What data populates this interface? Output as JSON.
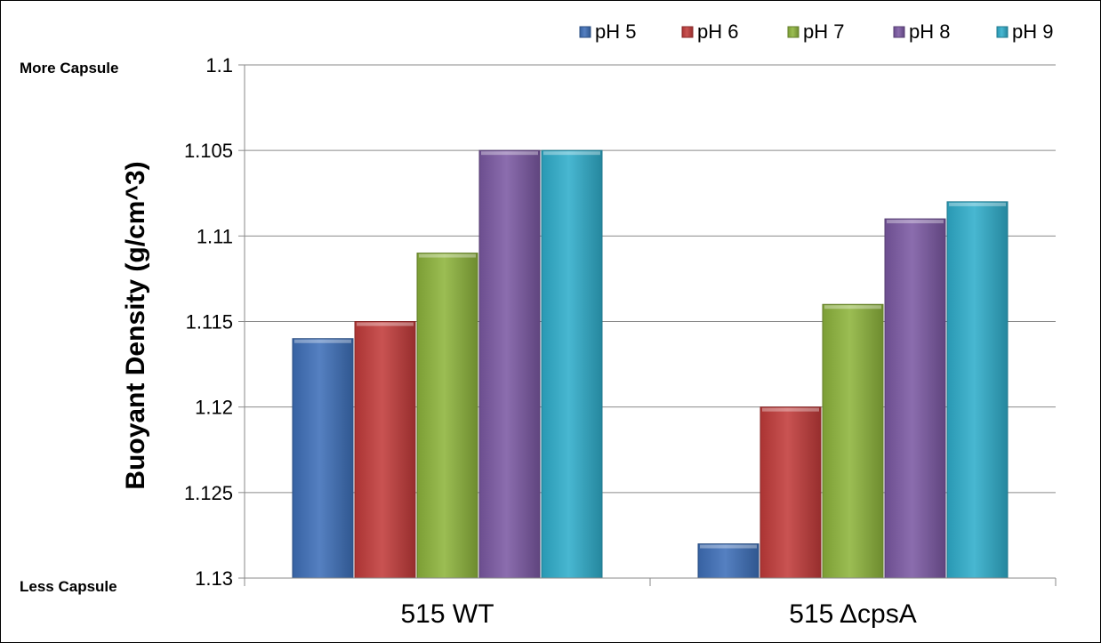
{
  "chart_data": {
    "type": "bar",
    "ylabel": "Buoyant Density (g/cm^3)",
    "y_axis_inverted": true,
    "ylim": [
      1.1,
      1.13
    ],
    "ytick_labels": [
      "1.1",
      "1.105",
      "1.11",
      "1.115",
      "1.12",
      "1.125",
      "1.13"
    ],
    "categories": [
      "515 WT",
      "515 ΔcpsA"
    ],
    "series": [
      {
        "name": "pH 5",
        "color": "#3E6FB8",
        "values": [
          1.116,
          1.128
        ]
      },
      {
        "name": "pH 6",
        "color": "#C23B3A",
        "values": [
          1.115,
          1.12
        ]
      },
      {
        "name": "pH 7",
        "color": "#8DB43C",
        "values": [
          1.111,
          1.114
        ]
      },
      {
        "name": "pH 8",
        "color": "#7B59A3",
        "values": [
          1.105,
          1.109
        ]
      },
      {
        "name": "pH 9",
        "color": "#2FADCB",
        "values": [
          1.105,
          1.108
        ]
      }
    ],
    "grid": true,
    "legend_position": "top-right",
    "annotations": {
      "top": "More Capsule",
      "bottom": "Less Capsule"
    }
  }
}
